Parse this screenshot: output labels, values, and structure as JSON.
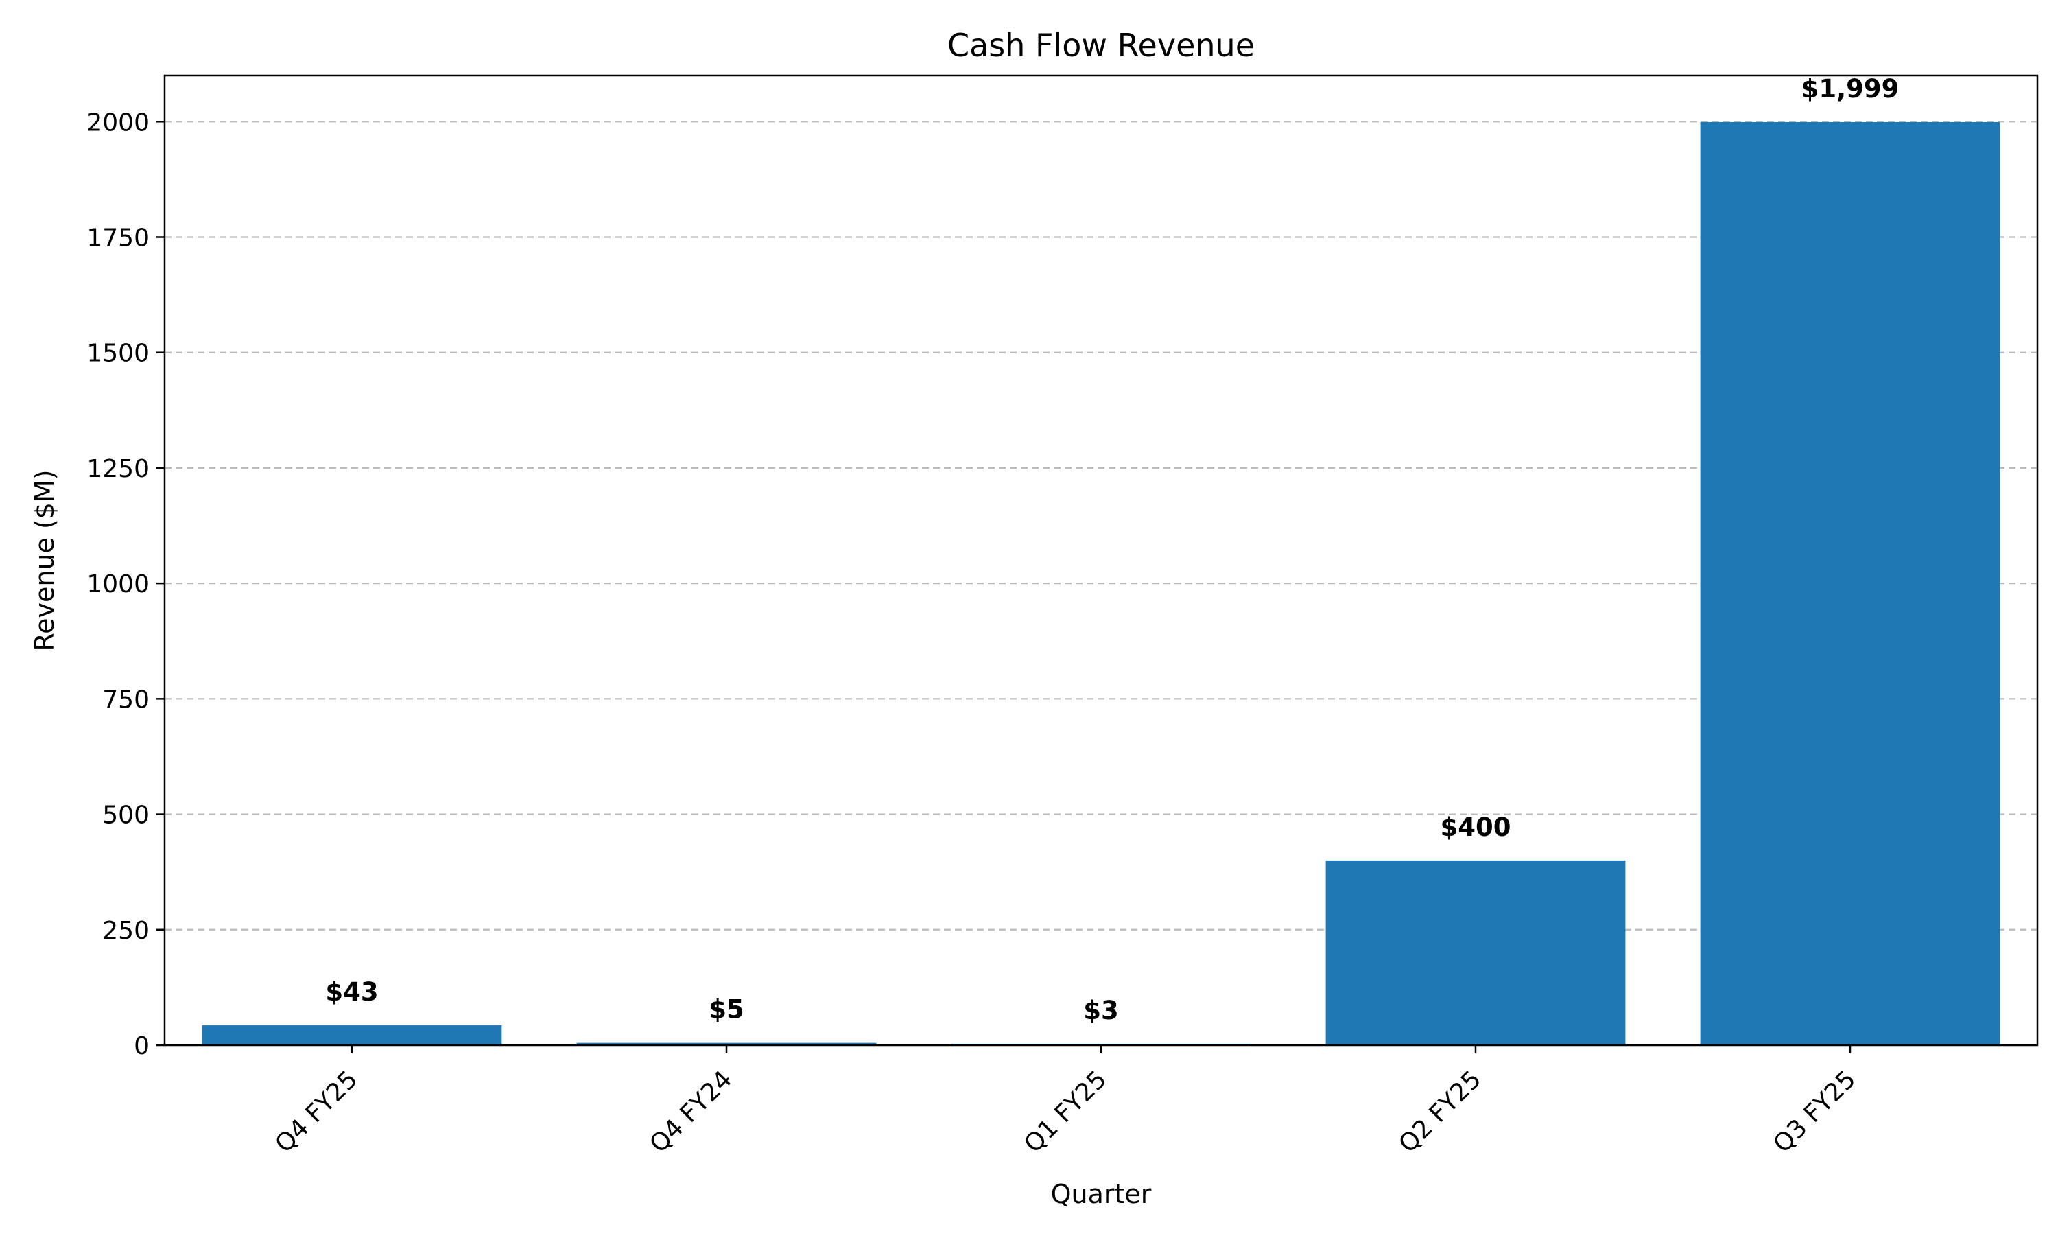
{
  "chart_data": {
    "type": "bar",
    "title": "Cash Flow Revenue",
    "xlabel": "Quarter",
    "ylabel": "Revenue ($M)",
    "categories": [
      "Q4 FY25",
      "Q4 FY24",
      "Q1 FY25",
      "Q2 FY25",
      "Q3 FY25"
    ],
    "values": [
      43,
      5,
      3,
      400,
      1999
    ],
    "data_labels": [
      "$43",
      "$5",
      "$3",
      "$400",
      "$1,999"
    ],
    "ylim": [
      0,
      2100
    ],
    "yticks": [
      0,
      250,
      500,
      750,
      1000,
      1250,
      1500,
      1750,
      2000
    ],
    "ytick_labels": [
      "0",
      "250",
      "500",
      "750",
      "1000",
      "1250",
      "1500",
      "1750",
      "2000"
    ],
    "grid": "y-axis dashed",
    "bar_color": "#1f77b4",
    "legend": "none"
  }
}
